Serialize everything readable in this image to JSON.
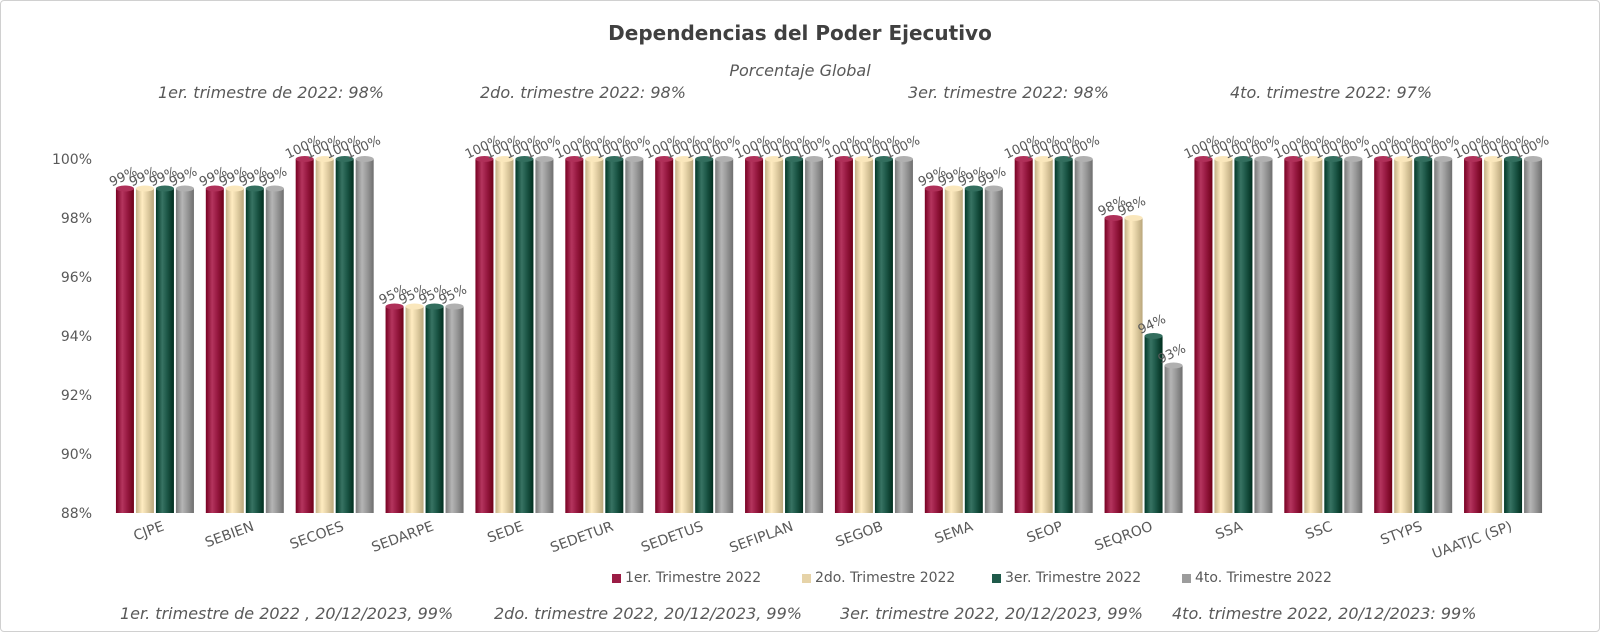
{
  "chart_data": {
    "type": "bar",
    "title": "Dependencias del Poder Ejecutivo",
    "subtitle": "Porcentaje Global",
    "quarter_notes": [
      "1er. trimestre de 2022: 98%",
      "2do. trimestre 2022: 98%",
      "3er. trimestre 2022: 98%",
      "4to. trimestre 2022: 97%"
    ],
    "footer_notes": [
      "1er. trimestre de 2022 , 20/12/2023, 99%",
      "2do. trimestre 2022, 20/12/2023, 99%",
      "3er. trimestre 2022, 20/12/2023, 99%",
      "4to. trimestre 2022, 20/12/2023: 99%"
    ],
    "categories": [
      "CJPE",
      "SEBIEN",
      "SECOES",
      "SEDARPE",
      "SEDE",
      "SEDETUR",
      "SEDETUS",
      "SEFIPLAN",
      "SEGOB",
      "SEMA",
      "SEOP",
      "SEQROO",
      "SSA",
      "SSC",
      "STYPS",
      "UAATJC (SP)"
    ],
    "series": [
      {
        "name": "1er. Trimestre 2022",
        "color": "#9b1c45",
        "values": [
          99,
          99,
          100,
          95,
          100,
          100,
          100,
          100,
          100,
          99,
          100,
          98,
          100,
          100,
          100,
          100
        ]
      },
      {
        "name": "2do. Trimestre 2022",
        "color": "#e6d3a8",
        "values": [
          99,
          99,
          100,
          95,
          100,
          100,
          100,
          100,
          100,
          99,
          100,
          98,
          100,
          100,
          100,
          100
        ]
      },
      {
        "name": "3er. Trimestre 2022",
        "color": "#1f5a4a",
        "values": [
          99,
          99,
          100,
          95,
          100,
          100,
          100,
          100,
          100,
          99,
          100,
          94,
          100,
          100,
          100,
          100
        ]
      },
      {
        "name": "4to. Trimestre 2022",
        "color": "#9c9c9c",
        "values": [
          99,
          99,
          100,
          95,
          100,
          100,
          100,
          100,
          100,
          99,
          100,
          93,
          100,
          100,
          100,
          100
        ]
      }
    ],
    "yticks": [
      "88%",
      "90%",
      "92%",
      "94%",
      "96%",
      "98%",
      "100%"
    ],
    "ylim": [
      88,
      100
    ],
    "value_suffix": "%",
    "legend_position": "bottom",
    "grid": false
  }
}
